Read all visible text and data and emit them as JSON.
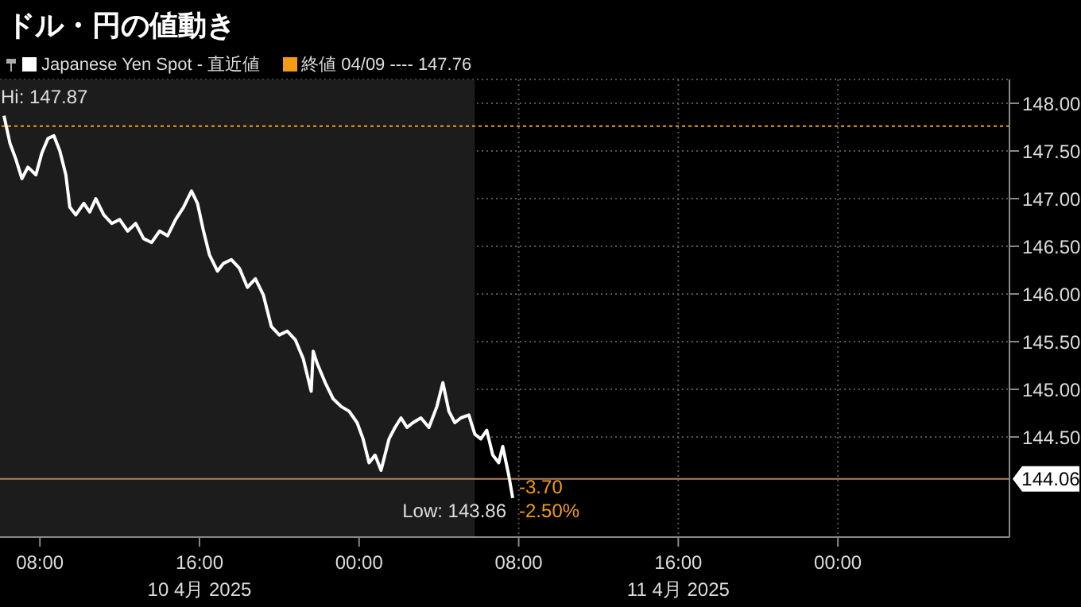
{
  "chart_data": {
    "type": "line",
    "title": "ドル・円の値動き",
    "x": [
      "2025-04-10T06:12",
      "2025-04-10T06:30",
      "2025-04-10T06:48",
      "2025-04-10T07:06",
      "2025-04-10T07:24",
      "2025-04-10T07:48",
      "2025-04-10T08:06",
      "2025-04-10T08:24",
      "2025-04-10T08:42",
      "2025-04-10T09:00",
      "2025-04-10T09:18",
      "2025-04-10T09:30",
      "2025-04-10T09:48",
      "2025-04-10T10:12",
      "2025-04-10T10:30",
      "2025-04-10T10:48",
      "2025-04-10T11:12",
      "2025-04-10T11:36",
      "2025-04-10T12:00",
      "2025-04-10T12:24",
      "2025-04-10T12:48",
      "2025-04-10T13:12",
      "2025-04-10T13:36",
      "2025-04-10T14:00",
      "2025-04-10T14:24",
      "2025-04-10T14:48",
      "2025-04-10T15:12",
      "2025-04-10T15:36",
      "2025-04-10T15:54",
      "2025-04-10T16:12",
      "2025-04-10T16:30",
      "2025-04-10T16:54",
      "2025-04-10T17:12",
      "2025-04-10T17:36",
      "2025-04-10T18:00",
      "2025-04-10T18:24",
      "2025-04-10T18:48",
      "2025-04-10T19:12",
      "2025-04-10T19:36",
      "2025-04-10T20:00",
      "2025-04-10T20:24",
      "2025-04-10T20:48",
      "2025-04-10T21:12",
      "2025-04-10T21:36",
      "2025-04-10T21:42",
      "2025-04-10T21:54",
      "2025-04-10T22:18",
      "2025-04-10T22:42",
      "2025-04-10T23:06",
      "2025-04-10T23:30",
      "2025-04-10T23:54",
      "2025-04-11T00:12",
      "2025-04-11T00:30",
      "2025-04-11T00:48",
      "2025-04-11T01:06",
      "2025-04-11T01:30",
      "2025-04-11T01:48",
      "2025-04-11T02:06",
      "2025-04-11T02:24",
      "2025-04-11T02:42",
      "2025-04-11T03:06",
      "2025-04-11T03:30",
      "2025-04-11T03:54",
      "2025-04-11T04:12",
      "2025-04-11T04:30",
      "2025-04-11T04:48",
      "2025-04-11T05:06",
      "2025-04-11T05:30",
      "2025-04-11T05:48",
      "2025-04-11T06:06",
      "2025-04-11T06:24",
      "2025-04-11T06:42",
      "2025-04-11T07:00",
      "2025-04-11T07:12",
      "2025-04-11T07:30",
      "2025-04-11T07:42"
    ],
    "series": [
      {
        "name": "Japanese Yen Spot - 直近値",
        "color": "#ffffff",
        "values": [
          147.87,
          147.58,
          147.41,
          147.21,
          147.33,
          147.25,
          147.48,
          147.63,
          147.66,
          147.5,
          147.25,
          146.91,
          146.83,
          146.95,
          146.86,
          147.0,
          146.83,
          146.74,
          146.78,
          146.66,
          146.74,
          146.58,
          146.54,
          146.66,
          146.61,
          146.78,
          146.91,
          147.08,
          146.95,
          146.66,
          146.41,
          146.24,
          146.32,
          146.36,
          146.27,
          146.07,
          146.16,
          145.99,
          145.66,
          145.57,
          145.61,
          145.52,
          145.32,
          144.98,
          145.4,
          145.27,
          145.07,
          144.9,
          144.82,
          144.77,
          144.65,
          144.48,
          144.23,
          144.31,
          144.15,
          144.48,
          144.6,
          144.7,
          144.6,
          144.65,
          144.7,
          144.6,
          144.82,
          145.07,
          144.77,
          144.65,
          144.7,
          144.73,
          144.53,
          144.48,
          144.57,
          144.31,
          144.23,
          144.4,
          144.1,
          143.86
        ]
      }
    ],
    "xlim": [
      "2025-04-10T06:00",
      "2025-04-12T08:36"
    ],
    "xticks": [
      {
        "value": "2025-04-10T08:00",
        "label": "08:00"
      },
      {
        "value": "2025-04-10T16:00",
        "label": "16:00"
      },
      {
        "value": "2025-04-11T00:00",
        "label": "00:00"
      },
      {
        "value": "2025-04-11T08:00",
        "label": "08:00"
      },
      {
        "value": "2025-04-11T16:00",
        "label": "16:00"
      },
      {
        "value": "2025-04-12T00:00",
        "label": "00:00"
      }
    ],
    "ylim": [
      143.45,
      148.25
    ],
    "yticks": [
      {
        "value": 144.5,
        "label": "144.50"
      },
      {
        "value": 145,
        "label": "145.00"
      },
      {
        "value": 145.5,
        "label": "145.50"
      },
      {
        "value": 146,
        "label": "146.00"
      },
      {
        "value": 146.5,
        "label": "146.50"
      },
      {
        "value": 147,
        "label": "147.00"
      },
      {
        "value": 147.5,
        "label": "147.50"
      },
      {
        "value": 148,
        "label": "148.00"
      }
    ],
    "grid": true,
    "legend": "top left",
    "ref_lines": [
      {
        "axis": "y",
        "value": 147.76,
        "label": "終値 04/09 ---- 147.76",
        "color": "#f39c12",
        "line_style": "dotted"
      },
      {
        "axis": "y",
        "value": 144.06,
        "label": "144.06",
        "color": "#b08060",
        "line_style": "solid"
      }
    ],
    "bands": [
      {
        "axis": "x",
        "from": "2025-04-10T06:00",
        "to": "2025-04-11T05:48",
        "color": "#1c1c1c"
      }
    ],
    "annotations": [
      "10 4月 2025",
      "11 4月 2025",
      {
        "text": "Hi: 147.87",
        "x": "2025-04-10T06:12",
        "y": 147.87
      },
      {
        "text": "Low: 143.86",
        "x": "2025-04-11T07:42",
        "y": 143.86
      },
      {
        "text": "-3.70",
        "x": "2025-04-11T07:42",
        "y": 143.86
      },
      {
        "text": "-2.50%",
        "x": "2025-04-11T07:42",
        "y": 143.86
      }
    ]
  }
}
